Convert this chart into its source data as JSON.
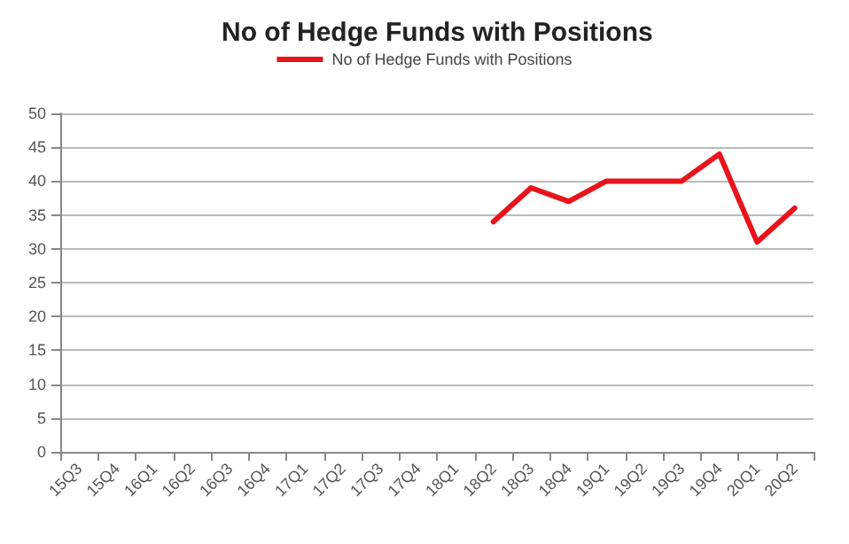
{
  "chart_data": {
    "type": "line",
    "title": "No of Hedge Funds with Positions",
    "categories": [
      "15Q3",
      "15Q4",
      "16Q1",
      "16Q2",
      "16Q3",
      "16Q4",
      "17Q1",
      "17Q2",
      "17Q3",
      "17Q4",
      "18Q1",
      "18Q2",
      "18Q3",
      "18Q4",
      "19Q1",
      "19Q2",
      "19Q3",
      "19Q4",
      "20Q1",
      "20Q2"
    ],
    "series": [
      {
        "name": "No of Hedge Funds with Positions",
        "color": "#e8131b",
        "values": [
          null,
          null,
          null,
          null,
          null,
          null,
          null,
          null,
          null,
          null,
          null,
          34,
          39,
          37,
          40,
          40,
          40,
          44,
          31,
          36
        ]
      }
    ],
    "ylim": [
      0,
      50
    ],
    "yticks": [
      0,
      5,
      10,
      15,
      20,
      25,
      30,
      35,
      40,
      45,
      50
    ],
    "grid": "y",
    "legend": "top",
    "marker": "none",
    "line_style": "solid"
  }
}
